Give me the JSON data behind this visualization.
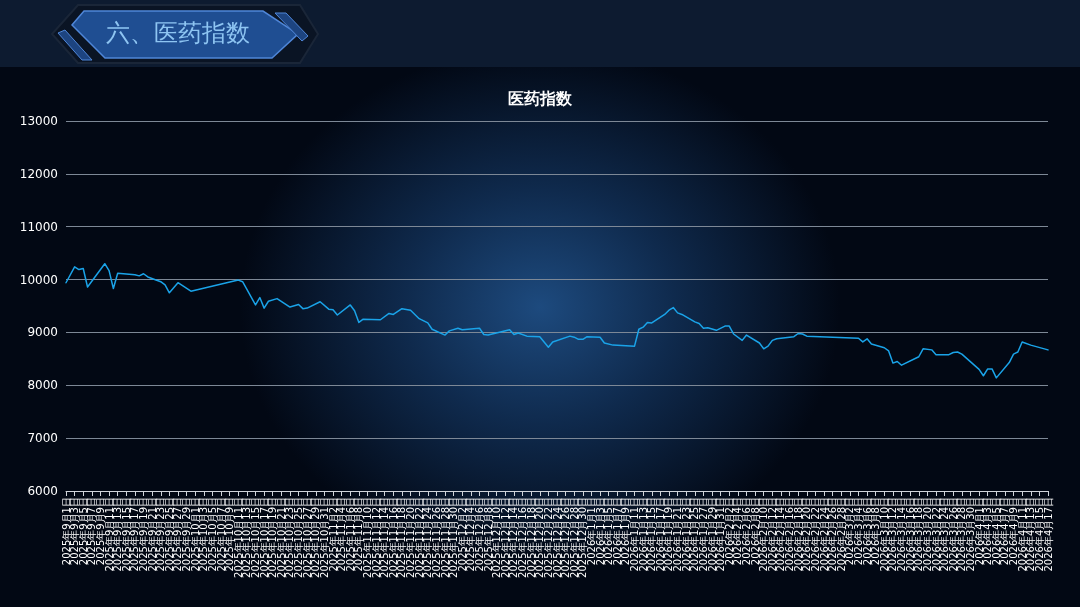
{
  "chart_data": {
    "type": "line",
    "title": "六、医药指数",
    "subtitle": "医药指数",
    "color": "#1aa3e8",
    "marker": "none",
    "line_style": "solid",
    "grid": "y",
    "x": [
      "2025-09-01",
      "2025-09-03",
      "2025-09-04",
      "2025-09-05",
      "2025-09-06",
      "2025-09-10",
      "2025-09-11",
      "2025-09-12",
      "2025-09-13",
      "2025-09-17",
      "2025-09-18",
      "2025-09-19",
      "2025-09-20",
      "2025-09-23",
      "2025-09-24",
      "2025-09-25",
      "2025-09-27",
      "2025-09-30",
      "2025-10-11",
      "2025-10-12",
      "2025-10-15",
      "2025-10-16",
      "2025-10-17",
      "2025-10-18",
      "2025-10-20",
      "2025-10-23",
      "2025-10-25",
      "2025-10-26",
      "2025-10-27",
      "2025-10-30",
      "2025-11-01",
      "2025-11-02",
      "2025-11-03",
      "2025-11-06",
      "2025-11-07",
      "2025-11-08",
      "2025-11-09",
      "2025-11-13",
      "2025-11-15",
      "2025-11-16",
      "2025-11-18",
      "2025-11-20",
      "2025-11-22",
      "2025-11-24",
      "2025-11-25",
      "2025-11-28",
      "2025-11-29",
      "2025-12-01",
      "2025-12-02",
      "2025-12-06",
      "2025-12-07",
      "2025-12-08",
      "2025-12-13",
      "2025-12-14",
      "2025-12-15",
      "2025-12-17",
      "2025-12-20",
      "2025-12-22",
      "2025-12-23",
      "2025-12-27",
      "2025-12-28",
      "2025-12-29",
      "2025-12-30",
      "2025-12-31",
      "2026-01-03",
      "2026-01-04",
      "2026-01-06",
      "2026-01-11",
      "2026-01-12",
      "2026-01-13",
      "2026-01-14",
      "2026-01-15",
      "2026-01-18",
      "2026-01-19",
      "2026-01-20",
      "2026-01-21",
      "2026-01-22",
      "2026-01-25",
      "2026-01-26",
      "2026-01-27",
      "2026-01-28",
      "2026-01-30",
      "2026-02-01",
      "2026-02-02",
      "2026-02-03",
      "2026-02-05",
      "2026-02-06",
      "2026-02-09",
      "2026-02-10",
      "2026-02-11",
      "2026-02-12",
      "2026-02-13",
      "2026-02-17",
      "2026-02-18",
      "2026-02-19",
      "2026-02-20",
      "2026-03-04",
      "2026-03-05",
      "2026-03-06",
      "2026-03-07",
      "2026-03-10",
      "2026-03-11",
      "2026-03-12",
      "2026-03-13",
      "2026-03-14",
      "2026-03-18",
      "2026-03-19",
      "2026-03-21",
      "2026-03-22",
      "2026-03-25",
      "2026-03-26",
      "2026-03-27",
      "2026-03-28",
      "2026-04-01",
      "2026-04-02",
      "2026-04-03",
      "2026-04-04",
      "2026-04-05",
      "2026-04-08",
      "2026-04-09",
      "2026-04-10",
      "2026-04-11",
      "2026-04-13",
      "2026-04-17"
    ],
    "values": [
      9940,
      10240,
      10190,
      10210,
      9860,
      10300,
      10170,
      9830,
      10120,
      10090,
      10070,
      10110,
      10050,
      9960,
      9900,
      9750,
      9940,
      9780,
      9990,
      9960,
      9520,
      9660,
      9460,
      9590,
      9640,
      9480,
      9530,
      9450,
      9460,
      9580,
      9440,
      9430,
      9330,
      9520,
      9410,
      9190,
      9250,
      9240,
      9360,
      9340,
      9450,
      9420,
      9260,
      9180,
      9060,
      8950,
      9030,
      9080,
      9050,
      9080,
      8960,
      8950,
      9050,
      8960,
      8990,
      8930,
      8920,
      8720,
      8820,
      8930,
      8910,
      8870,
      8870,
      8920,
      8910,
      8800,
      8760,
      8740,
      9060,
      9100,
      9190,
      9180,
      9340,
      9420,
      9470,
      9370,
      9340,
      9200,
      9170,
      9080,
      9090,
      9040,
      9120,
      9120,
      8970,
      8850,
      8950,
      8800,
      8690,
      8740,
      8850,
      8880,
      8920,
      8980,
      8970,
      8930,
      8890,
      8820,
      8880,
      8780,
      8710,
      8650,
      8420,
      8450,
      8380,
      8540,
      8690,
      8670,
      8580,
      8580,
      8620,
      8630,
      8590,
      8300,
      8180,
      8310,
      8310,
      8140,
      8430,
      8590,
      8630,
      8820,
      8760,
      8670
    ],
    "xlim": [
      "2025-09-01",
      "2026-04-17"
    ],
    "ylim": [
      6000,
      13000
    ],
    "yticks": [
      6000,
      7000,
      8000,
      9000,
      10000,
      11000,
      12000,
      13000
    ],
    "xticks": [
      {
        "value": "2025-09-01",
        "label": "2025年9月1日"
      },
      {
        "value": "2025-09-03",
        "label": "2025年9月3日"
      },
      {
        "value": "2025-09-05",
        "label": "2025年9月5日"
      },
      {
        "value": "2025-09-07",
        "label": "2025年9月7日"
      },
      {
        "value": "2025-09-09",
        "label": "2025年9月9日"
      },
      {
        "value": "2025-09-11",
        "label": "2025年9月11日"
      },
      {
        "value": "2025-09-13",
        "label": "2025年9月13日"
      },
      {
        "value": "2025-09-15",
        "label": "2025年9月15日"
      },
      {
        "value": "2025-09-17",
        "label": "2025年9月17日"
      },
      {
        "value": "2025-09-19",
        "label": "2025年9月19日"
      },
      {
        "value": "2025-09-21",
        "label": "2025年9月21日"
      },
      {
        "value": "2025-09-23",
        "label": "2025年9月23日"
      },
      {
        "value": "2025-09-25",
        "label": "2025年9月25日"
      },
      {
        "value": "2025-09-27",
        "label": "2025年9月27日"
      },
      {
        "value": "2025-09-29",
        "label": "2025年9月29日"
      },
      {
        "value": "2025-10-01",
        "label": "2025年10月1日"
      },
      {
        "value": "2025-10-03",
        "label": "2025年10月3日"
      },
      {
        "value": "2025-10-05",
        "label": "2025年10月5日"
      },
      {
        "value": "2025-10-07",
        "label": "2025年10月7日"
      },
      {
        "value": "2025-10-09",
        "label": "2025年10月9日"
      },
      {
        "value": "2025-10-11",
        "label": "2025年10月11日"
      },
      {
        "value": "2025-10-13",
        "label": "2025年10月13日"
      },
      {
        "value": "2025-10-15",
        "label": "2025年10月15日"
      },
      {
        "value": "2025-10-17",
        "label": "2025年10月17日"
      },
      {
        "value": "2025-10-19",
        "label": "2025年10月19日"
      },
      {
        "value": "2025-10-21",
        "label": "2025年10月21日"
      },
      {
        "value": "2025-10-23",
        "label": "2025年10月23日"
      },
      {
        "value": "2025-10-25",
        "label": "2025年10月25日"
      },
      {
        "value": "2025-10-27",
        "label": "2025年10月27日"
      },
      {
        "value": "2025-10-29",
        "label": "2025年10月29日"
      },
      {
        "value": "2025-10-31",
        "label": "2025年10月31日"
      },
      {
        "value": "2025-11-02",
        "label": "2025年11月2日"
      },
      {
        "value": "2025-11-04",
        "label": "2025年11月4日"
      },
      {
        "value": "2025-11-06",
        "label": "2025年11月6日"
      },
      {
        "value": "2025-11-08",
        "label": "2025年11月8日"
      },
      {
        "value": "2025-11-10",
        "label": "2025年11月10日"
      },
      {
        "value": "2025-11-12",
        "label": "2025年11月12日"
      },
      {
        "value": "2025-11-14",
        "label": "2025年11月14日"
      },
      {
        "value": "2025-11-16",
        "label": "2025年11月16日"
      },
      {
        "value": "2025-11-18",
        "label": "2025年11月18日"
      },
      {
        "value": "2025-11-20",
        "label": "2025年11月20日"
      },
      {
        "value": "2025-11-22",
        "label": "2025年11月22日"
      },
      {
        "value": "2025-11-24",
        "label": "2025年11月24日"
      },
      {
        "value": "2025-11-26",
        "label": "2025年11月26日"
      },
      {
        "value": "2025-11-28",
        "label": "2025年11月28日"
      },
      {
        "value": "2025-11-30",
        "label": "2025年11月30日"
      },
      {
        "value": "2025-12-02",
        "label": "2025年12月2日"
      },
      {
        "value": "2025-12-04",
        "label": "2025年12月4日"
      },
      {
        "value": "2025-12-06",
        "label": "2025年12月6日"
      },
      {
        "value": "2025-12-08",
        "label": "2025年12月8日"
      },
      {
        "value": "2025-12-10",
        "label": "2025年12月10日"
      },
      {
        "value": "2025-12-12",
        "label": "2025年12月12日"
      },
      {
        "value": "2025-12-14",
        "label": "2025年12月14日"
      },
      {
        "value": "2025-12-16",
        "label": "2025年12月16日"
      },
      {
        "value": "2025-12-18",
        "label": "2025年12月18日"
      },
      {
        "value": "2025-12-20",
        "label": "2025年12月20日"
      },
      {
        "value": "2025-12-22",
        "label": "2025年12月22日"
      },
      {
        "value": "2025-12-24",
        "label": "2025年12月24日"
      },
      {
        "value": "2025-12-26",
        "label": "2025年12月26日"
      },
      {
        "value": "2025-12-28",
        "label": "2025年12月28日"
      },
      {
        "value": "2025-12-30",
        "label": "2025年12月30日"
      },
      {
        "value": "2026-01-01",
        "label": "2026年1月1日"
      },
      {
        "value": "2026-01-03",
        "label": "2026年1月3日"
      },
      {
        "value": "2026-01-05",
        "label": "2026年1月5日"
      },
      {
        "value": "2026-01-07",
        "label": "2026年1月7日"
      },
      {
        "value": "2026-01-09",
        "label": "2026年1月9日"
      },
      {
        "value": "2026-01-11",
        "label": "2026年1月11日"
      },
      {
        "value": "2026-01-13",
        "label": "2026年1月13日"
      },
      {
        "value": "2026-01-15",
        "label": "2026年1月15日"
      },
      {
        "value": "2026-01-17",
        "label": "2026年1月17日"
      },
      {
        "value": "2026-01-19",
        "label": "2026年1月19日"
      },
      {
        "value": "2026-01-21",
        "label": "2026年1月21日"
      },
      {
        "value": "2026-01-23",
        "label": "2026年1月23日"
      },
      {
        "value": "2026-01-25",
        "label": "2026年1月25日"
      },
      {
        "value": "2026-01-27",
        "label": "2026年1月27日"
      },
      {
        "value": "2026-01-29",
        "label": "2026年1月29日"
      },
      {
        "value": "2026-01-31",
        "label": "2026年1月31日"
      },
      {
        "value": "2026-02-02",
        "label": "2026年2月2日"
      },
      {
        "value": "2026-02-04",
        "label": "2026年2月4日"
      },
      {
        "value": "2026-02-06",
        "label": "2026年2月6日"
      },
      {
        "value": "2026-02-08",
        "label": "2026年2月8日"
      },
      {
        "value": "2026-02-10",
        "label": "2026年2月10日"
      },
      {
        "value": "2026-02-12",
        "label": "2026年2月12日"
      },
      {
        "value": "2026-02-14",
        "label": "2026年2月14日"
      },
      {
        "value": "2026-02-16",
        "label": "2026年2月16日"
      },
      {
        "value": "2026-02-18",
        "label": "2026年2月18日"
      },
      {
        "value": "2026-02-20",
        "label": "2026年2月20日"
      },
      {
        "value": "2026-02-22",
        "label": "2026年2月22日"
      },
      {
        "value": "2026-02-24",
        "label": "2026年2月24日"
      },
      {
        "value": "2026-02-26",
        "label": "2026年2月26日"
      },
      {
        "value": "2026-02-28",
        "label": "2026年2月28日"
      },
      {
        "value": "2026-03-02",
        "label": "2026年3月2日"
      },
      {
        "value": "2026-03-04",
        "label": "2026年3月4日"
      },
      {
        "value": "2026-03-06",
        "label": "2026年3月6日"
      },
      {
        "value": "2026-03-08",
        "label": "2026年3月8日"
      },
      {
        "value": "2026-03-10",
        "label": "2026年3月10日"
      },
      {
        "value": "2026-03-12",
        "label": "2026年3月12日"
      },
      {
        "value": "2026-03-14",
        "label": "2026年3月14日"
      },
      {
        "value": "2026-03-16",
        "label": "2026年3月16日"
      },
      {
        "value": "2026-03-18",
        "label": "2026年3月18日"
      },
      {
        "value": "2026-03-20",
        "label": "2026年3月20日"
      },
      {
        "value": "2026-03-22",
        "label": "2026年3月22日"
      },
      {
        "value": "2026-03-24",
        "label": "2026年3月24日"
      },
      {
        "value": "2026-03-26",
        "label": "2026年3月26日"
      },
      {
        "value": "2026-03-28",
        "label": "2026年3月28日"
      },
      {
        "value": "2026-03-30",
        "label": "2026年3月30日"
      },
      {
        "value": "2026-04-01",
        "label": "2026年4月1日"
      },
      {
        "value": "2026-04-03",
        "label": "2026年4月3日"
      },
      {
        "value": "2026-04-05",
        "label": "2026年4月5日"
      },
      {
        "value": "2026-04-07",
        "label": "2026年4月7日"
      },
      {
        "value": "2026-04-09",
        "label": "2026年4月9日"
      },
      {
        "value": "2026-04-11",
        "label": "2026年4月11日"
      },
      {
        "value": "2026-04-13",
        "label": "2026年4月13日"
      },
      {
        "value": "2026-04-15",
        "label": "2026年4月15日"
      },
      {
        "value": "2026-04-17",
        "label": "2026年4月17日"
      }
    ]
  }
}
